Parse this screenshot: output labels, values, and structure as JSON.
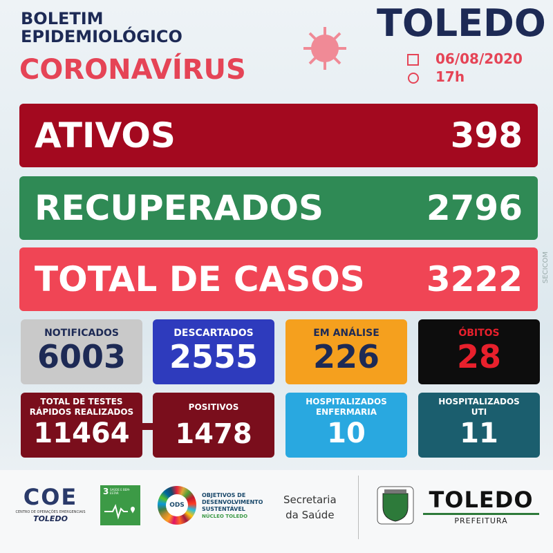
{
  "header": {
    "title_lines": [
      "BOLETIM",
      "EPIDEMIOLÓGICO"
    ],
    "subtitle": "CORONAVÍRUS",
    "city": "TOLEDO",
    "date": "06/08/2020",
    "time": "17h"
  },
  "main": [
    {
      "label": "ATIVOS",
      "value": 398
    },
    {
      "label": "RECUPERADOS",
      "value": 2796
    },
    {
      "label": "TOTAL DE CASOS",
      "value": 3222
    }
  ],
  "stats": [
    {
      "label": "NOTIFICADOS",
      "value": 6003
    },
    {
      "label": "DESCARTADOS",
      "value": 2555
    },
    {
      "label": "EM ANÁLISE",
      "value": 226
    },
    {
      "label": "ÓBITOS",
      "value": 28
    }
  ],
  "stats2": [
    {
      "label": [
        "TOTAL DE TESTES",
        "RÁPIDOS REALIZADOS"
      ],
      "value": 11464
    },
    {
      "label": [
        "POSITIVOS"
      ],
      "value": 1478
    },
    {
      "label": [
        "HOSPITALIZADOS",
        "ENFERMARIA"
      ],
      "value": 10
    },
    {
      "label": [
        "HOSPITALIZADOS",
        "UTI"
      ],
      "value": 11
    }
  ],
  "side_text": "SECICOM",
  "footer": {
    "coe": {
      "logo": "COE",
      "name": "CENTRO DE OPERAÇÕES EMERGENCIAIS",
      "city": "TOLEDO"
    },
    "sdg": {
      "number": "3",
      "name": "SAÚDE E BEM-ESTAR"
    },
    "ods": {
      "logo": "ODS",
      "name": [
        "OBJETIVOS DE",
        "DESENVOLVIMENTO",
        "SUSTENTÁVEL"
      ],
      "unit": "NÚCLEO TOLEDO"
    },
    "secretaria": [
      "Secretaria",
      "da Saúde"
    ],
    "prefeitura": {
      "city": "TOLEDO",
      "name": "PREFEITURA"
    }
  }
}
